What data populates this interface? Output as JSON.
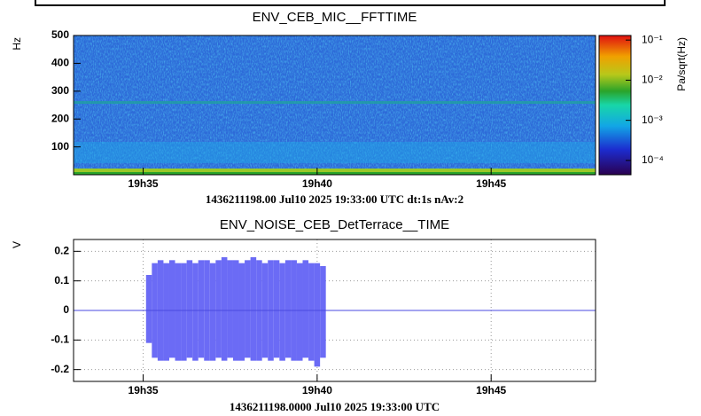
{
  "chart_data": [
    {
      "type": "spectrogram",
      "title": "ENV_CEB_MIC__FFTTIME",
      "ylabel": "Hz",
      "footer": "1436211198.00 Jul10 2025 19:33:00 UTC dt:1s nAv:2",
      "xlim": [
        0,
        900
      ],
      "xticks": [
        {
          "value": 120,
          "label": "19h35"
        },
        {
          "value": 420,
          "label": "19h40"
        },
        {
          "value": 720,
          "label": "19h45"
        }
      ],
      "ylim": [
        0,
        500
      ],
      "yticks": [
        100,
        200,
        300,
        400,
        500
      ],
      "colorbar": {
        "label": "Pa/sqrt(Hz)",
        "log": true,
        "zlim": [
          4.4e-05,
          0.13
        ],
        "ticks": [
          {
            "value": 0.1,
            "label": "10⁻¹"
          },
          {
            "value": 0.01,
            "label": "10⁻²"
          },
          {
            "value": 0.001,
            "label": "10⁻³"
          },
          {
            "value": 0.0001,
            "label": "10⁻⁴"
          }
        ]
      }
    },
    {
      "type": "band",
      "title": "ENV_NOISE_CEB_DetTerrace__TIME",
      "ylabel": "V",
      "footer": "1436211198.0000 Jul10 2025 19:33:00 UTC",
      "xlim": [
        0,
        900
      ],
      "xticks": [
        {
          "value": 120,
          "label": "19h35"
        },
        {
          "value": 420,
          "label": "19h40"
        },
        {
          "value": 720,
          "label": "19h45"
        }
      ],
      "ylim": [
        -0.24,
        0.24
      ],
      "yticks": [
        0.2,
        0.1,
        0,
        -0.1,
        -0.2
      ],
      "grid": true,
      "baseline": {
        "x": [
          0,
          900
        ],
        "values": [
          0,
          0
        ],
        "color": "#4a4ae0"
      },
      "series": [
        {
          "color": "#6b6bf5",
          "x": [
            130,
            140,
            150,
            160,
            170,
            180,
            190,
            200,
            210,
            220,
            230,
            240,
            250,
            260,
            270,
            280,
            290,
            300,
            310,
            320,
            330,
            340,
            350,
            360,
            370,
            380,
            390,
            400,
            410,
            420,
            430
          ],
          "upper": [
            0.12,
            0.16,
            0.17,
            0.16,
            0.17,
            0.16,
            0.16,
            0.17,
            0.16,
            0.17,
            0.17,
            0.16,
            0.17,
            0.18,
            0.17,
            0.17,
            0.16,
            0.17,
            0.18,
            0.17,
            0.16,
            0.17,
            0.17,
            0.16,
            0.17,
            0.17,
            0.16,
            0.17,
            0.16,
            0.16,
            0.15
          ],
          "lower": [
            -0.11,
            -0.16,
            -0.17,
            -0.17,
            -0.16,
            -0.17,
            -0.17,
            -0.16,
            -0.17,
            -0.16,
            -0.17,
            -0.17,
            -0.16,
            -0.17,
            -0.16,
            -0.17,
            -0.17,
            -0.16,
            -0.17,
            -0.17,
            -0.16,
            -0.17,
            -0.16,
            -0.17,
            -0.16,
            -0.17,
            -0.17,
            -0.16,
            -0.17,
            -0.19,
            -0.16
          ]
        }
      ]
    }
  ]
}
